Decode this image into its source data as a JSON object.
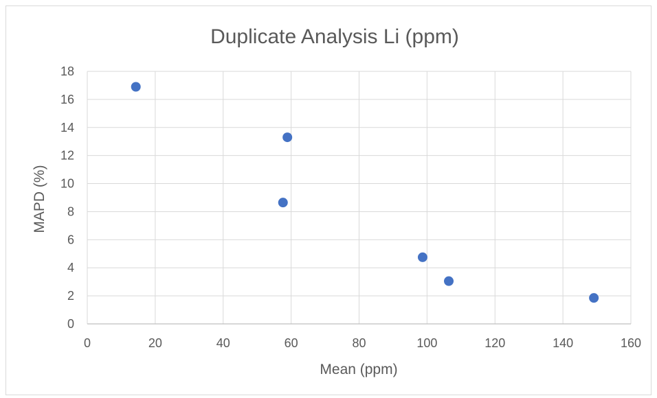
{
  "chart_data": {
    "type": "scatter",
    "title": "Duplicate Analysis Li (ppm)",
    "xlabel": "Mean (ppm)",
    "ylabel": "MAPD (%)",
    "xlim": [
      0,
      160
    ],
    "ylim": [
      0,
      18
    ],
    "xticks": [
      "0",
      "20",
      "40",
      "60",
      "80",
      "100",
      "120",
      "140",
      "160"
    ],
    "yticks": [
      "0",
      "2",
      "4",
      "6",
      "8",
      "10",
      "12",
      "14",
      "16",
      "18"
    ],
    "grid": true,
    "legend": "none",
    "color": "#4472c4",
    "points": [
      {
        "x": 14.3,
        "y": 16.9
      },
      {
        "x": 58.9,
        "y": 13.3
      },
      {
        "x": 57.6,
        "y": 8.65
      },
      {
        "x": 98.7,
        "y": 4.75
      },
      {
        "x": 106.4,
        "y": 3.05
      },
      {
        "x": 149.1,
        "y": 1.85
      }
    ]
  }
}
